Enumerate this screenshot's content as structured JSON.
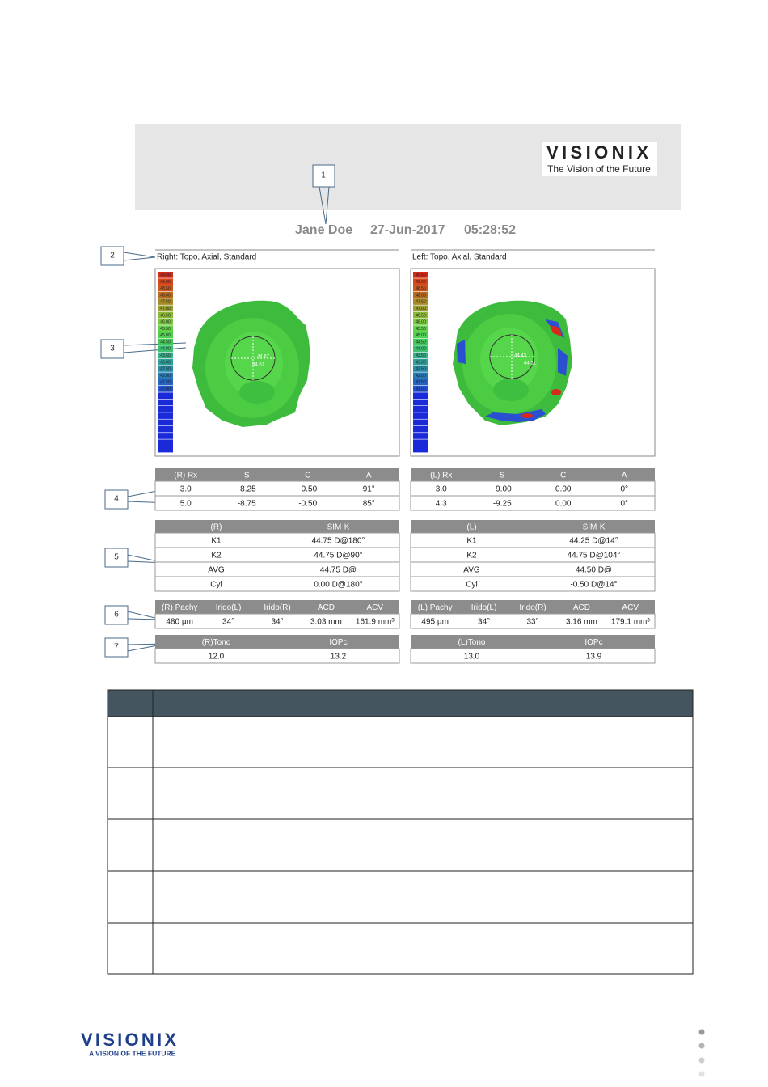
{
  "header": {
    "logo": "VISIONIX",
    "tagline": "The Vision of the Future"
  },
  "callouts": [
    "1",
    "2",
    "3",
    "4",
    "5",
    "6",
    "7"
  ],
  "patient": {
    "name": "Jane Doe",
    "date": "27-Jun-2017",
    "time": "05:28:52"
  },
  "eyes": [
    {
      "map_title": "Right: Topo, Axial, Standard",
      "scale_labels": [
        "49.50",
        "49.00",
        "48.50",
        "48.00",
        "47.50",
        "47.00",
        "46.50",
        "46.00",
        "45.50",
        "45.00",
        "44.50",
        "44.00",
        "43.50",
        "43.00",
        "42.50",
        "42.00",
        "41.50",
        "41.00"
      ],
      "map_labels": [
        "44.67",
        "44.67"
      ],
      "rx": {
        "header": [
          "(R) Rx",
          "S",
          "C",
          "A"
        ],
        "rows": [
          [
            "3.0",
            "-8.25",
            "-0.50",
            "91°"
          ],
          [
            "5.0",
            "-8.75",
            "-0.50",
            "85°"
          ]
        ]
      },
      "simk": {
        "header": [
          "(R)",
          "SIM-K"
        ],
        "rows": [
          [
            "K1",
            "44.75 D@180°"
          ],
          [
            "K2",
            "44.75 D@90°"
          ],
          [
            "AVG",
            "44.75 D@"
          ],
          [
            "Cyl",
            "0.00 D@180°"
          ]
        ]
      },
      "biometry": {
        "header": [
          "(R) Pachy",
          "Irido(L)",
          "Irido(R)",
          "ACD",
          "ACV"
        ],
        "rows": [
          [
            "480 µm",
            "34°",
            "34°",
            "3.03 mm",
            "161.9 mm³"
          ]
        ]
      },
      "tono": {
        "header": [
          "(R)Tono",
          "IOPc"
        ],
        "rows": [
          [
            "12.0",
            "13.2"
          ]
        ]
      }
    },
    {
      "map_title": "Left: Topo, Axial, Standard",
      "scale_labels": [
        "49.50",
        "49.00",
        "48.50",
        "48.00",
        "47.50",
        "47.00",
        "46.50",
        "46.00",
        "45.50",
        "45.00",
        "44.50",
        "44.00",
        "43.50",
        "43.00",
        "42.50",
        "42.00",
        "41.50",
        "41.00"
      ],
      "map_labels": [
        "44.43",
        "44.11"
      ],
      "rx": {
        "header": [
          "(L) Rx",
          "S",
          "C",
          "A"
        ],
        "rows": [
          [
            "3.0",
            "-9.00",
            "0.00",
            "0°"
          ],
          [
            "4.3",
            "-9.25",
            "0.00",
            "0°"
          ]
        ]
      },
      "simk": {
        "header": [
          "(L)",
          "SIM-K"
        ],
        "rows": [
          [
            "K1",
            "44.25 D@14°"
          ],
          [
            "K2",
            "44.75 D@104°"
          ],
          [
            "AVG",
            "44.50 D@"
          ],
          [
            "Cyl",
            "-0.50 D@14°"
          ]
        ]
      },
      "biometry": {
        "header": [
          "(L) Pachy",
          "Irido(L)",
          "Irido(R)",
          "ACD",
          "ACV"
        ],
        "rows": [
          [
            "495 µm",
            "34°",
            "33°",
            "3.16 mm",
            "179.1 mm³"
          ]
        ]
      },
      "tono": {
        "header": [
          "(L)Tono",
          "IOPc"
        ],
        "rows": [
          [
            "13.0",
            "13.9"
          ]
        ]
      }
    }
  ],
  "footer": {
    "logo": "VISIONIX",
    "tagline": "A VISION OF THE FUTURE"
  }
}
